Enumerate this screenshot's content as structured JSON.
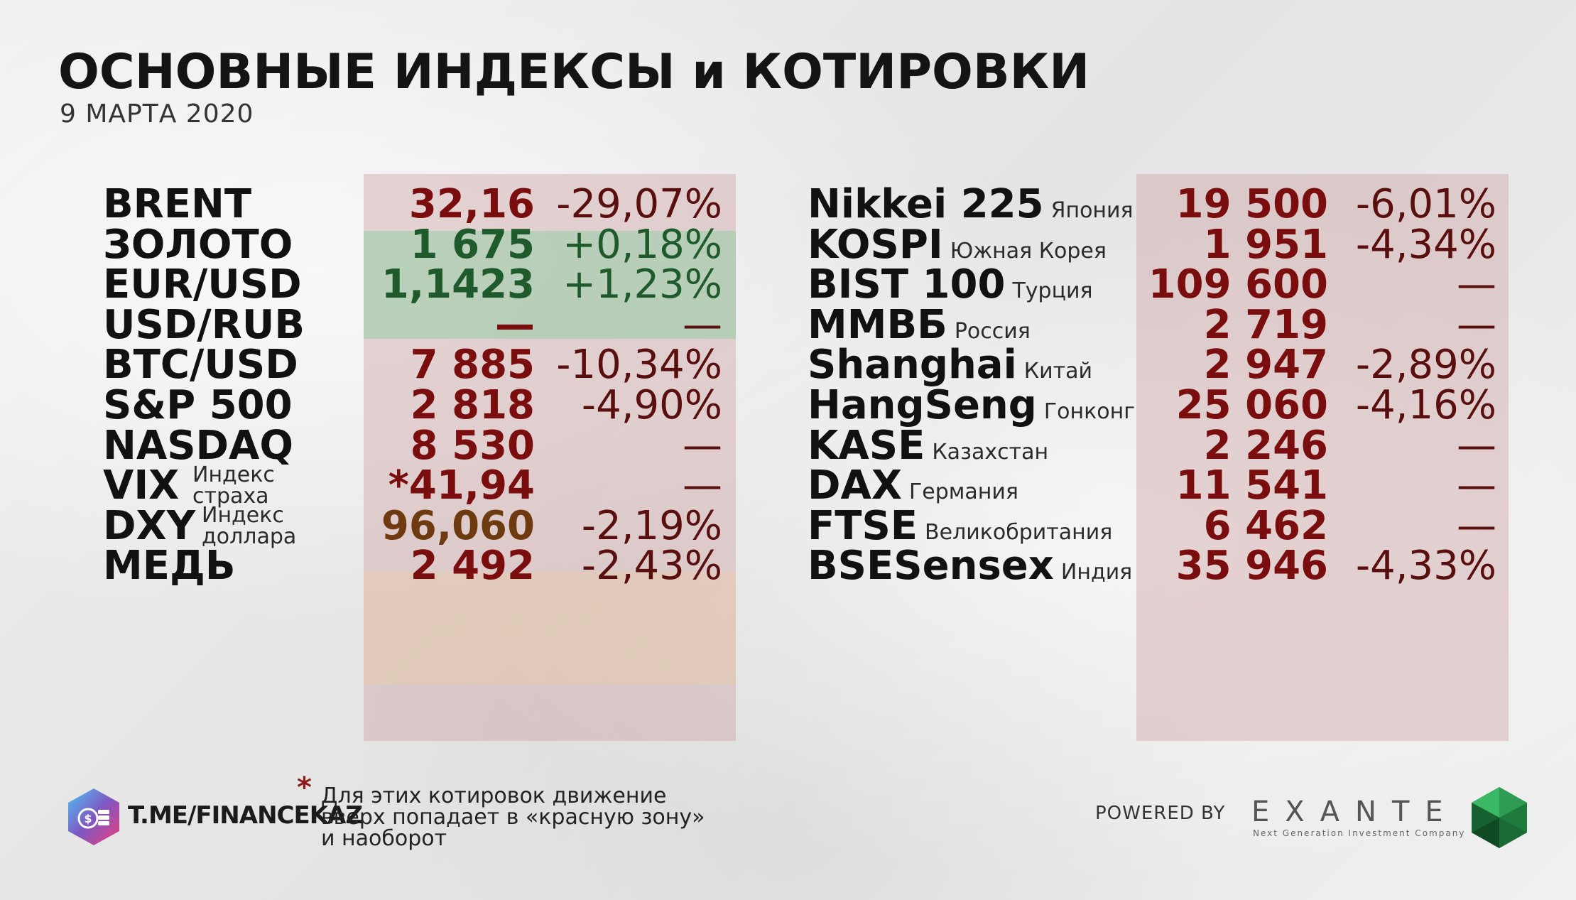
{
  "header": {
    "title": "ОСНОВНЫЕ ИНДЕКСЫ и КОТИРОВКИ",
    "date": "9 МАРТА 2020"
  },
  "left_rows": [
    {
      "name": "BRENT",
      "sub1": "",
      "sub2": "",
      "value": "32,16",
      "change": "-29,07%",
      "tone": "red"
    },
    {
      "name": "ЗОЛОТО",
      "sub1": "",
      "sub2": "",
      "value": "1 675",
      "change": "+0,18%",
      "tone": "green"
    },
    {
      "name": "EUR/USD",
      "sub1": "",
      "sub2": "",
      "value": "1,1423",
      "change": "+1,23%",
      "tone": "green"
    },
    {
      "name": "USD/RUB",
      "sub1": "",
      "sub2": "",
      "value": "—",
      "change": "—",
      "tone": "red"
    },
    {
      "name": "BTC/USD",
      "sub1": "",
      "sub2": "",
      "value": "7 885",
      "change": "-10,34%",
      "tone": "red"
    },
    {
      "name": "S&P 500",
      "sub1": "",
      "sub2": "",
      "value": "2 818",
      "change": "-4,90%",
      "tone": "red"
    },
    {
      "name": "NASDAQ",
      "sub1": "",
      "sub2": "",
      "value": "8 530",
      "change": "—",
      "tone": "red"
    },
    {
      "name": "VIX",
      "sub1": "Индекс",
      "sub2": "страха",
      "value": "*41,94",
      "change": "—",
      "tone": "red"
    },
    {
      "name": "DXY",
      "sub1": "Индекс",
      "sub2": "доллара",
      "value": "96,060",
      "change": "-2,19%",
      "tone": "brown"
    },
    {
      "name": "МЕДЬ",
      "sub1": "",
      "sub2": "",
      "value": "2 492",
      "change": "-2,43%",
      "tone": "red"
    }
  ],
  "right_rows": [
    {
      "name": "Nikkei 225",
      "country": "Япония",
      "value": "19 500",
      "change": "-6,01%"
    },
    {
      "name": "KOSPI",
      "country": "Южная Корея",
      "value": "1 951",
      "change": "-4,34%"
    },
    {
      "name": "BIST 100",
      "country": "Турция",
      "value": "109 600",
      "change": "—"
    },
    {
      "name": "ММВБ",
      "country": "Россия",
      "value": "2 719",
      "change": "—"
    },
    {
      "name": "Shanghai",
      "country": "Китай",
      "value": "2 947",
      "change": "-2,89%"
    },
    {
      "name": "HangSeng",
      "country": "Гонконг",
      "value": "25 060",
      "change": "-4,16%"
    },
    {
      "name": "KASE",
      "country": "Казахстан",
      "value": "2 246",
      "change": "—"
    },
    {
      "name": "DAX",
      "country": "Германия",
      "value": "11 541",
      "change": "—"
    },
    {
      "name": "FTSE",
      "country": "Великобритания",
      "value": "6 462",
      "change": "—"
    },
    {
      "name": "BSESensex",
      "country": "Индия",
      "value": "35 946",
      "change": "-4,33%"
    }
  ],
  "footer": {
    "link": "T.ME/FINANCEKAZ",
    "note_mark": "*",
    "note_lines": [
      "Для этих котировок движение",
      "вверх попадает в «красную зону»",
      "и наоборот"
    ],
    "powered_by": "POWERED BY",
    "brand": "EXANTE",
    "brand_tagline": "Next Generation Investment Company"
  },
  "colors": {
    "negative": "#7a0d0d",
    "positive": "#1e5a2c",
    "dxy": "#6e3a10"
  }
}
